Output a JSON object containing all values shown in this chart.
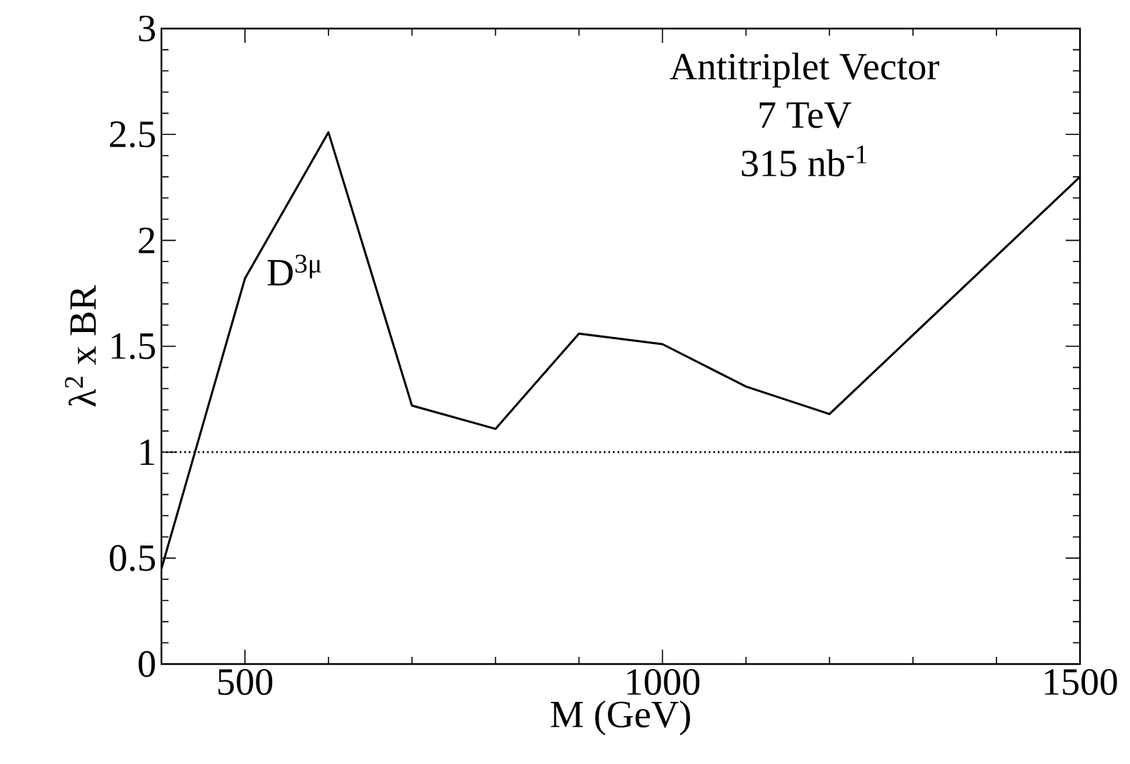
{
  "chart_data": {
    "type": "line",
    "xlabel": "M (GeV)",
    "ylabel": "λ$^{2}$ x BR",
    "x": [
      400,
      500,
      600,
      700,
      800,
      900,
      1000,
      1100,
      1200,
      1500
    ],
    "series": [
      {
        "color": "#000000",
        "values": [
          0.45,
          1.82,
          2.51,
          1.22,
          1.11,
          1.56,
          1.51,
          1.31,
          1.18,
          2.3
        ]
      }
    ],
    "xlim": [
      400,
      1500
    ],
    "ylim": [
      0,
      3
    ],
    "xticks": [
      500,
      1000,
      1500
    ],
    "yticks": [
      0,
      0.5,
      1,
      1.5,
      2,
      2.5,
      3
    ],
    "ref_lines": [
      {
        "axis": "y",
        "value": 1,
        "line_style": "dotted",
        "color": "#000000"
      }
    ],
    "annotations": [
      "D$^{3μ}$",
      "Antitriplet Vector",
      "7 TeV",
      "315 nb$^{-1}$"
    ],
    "line_style": "solid",
    "marker": "none",
    "grid": false
  }
}
